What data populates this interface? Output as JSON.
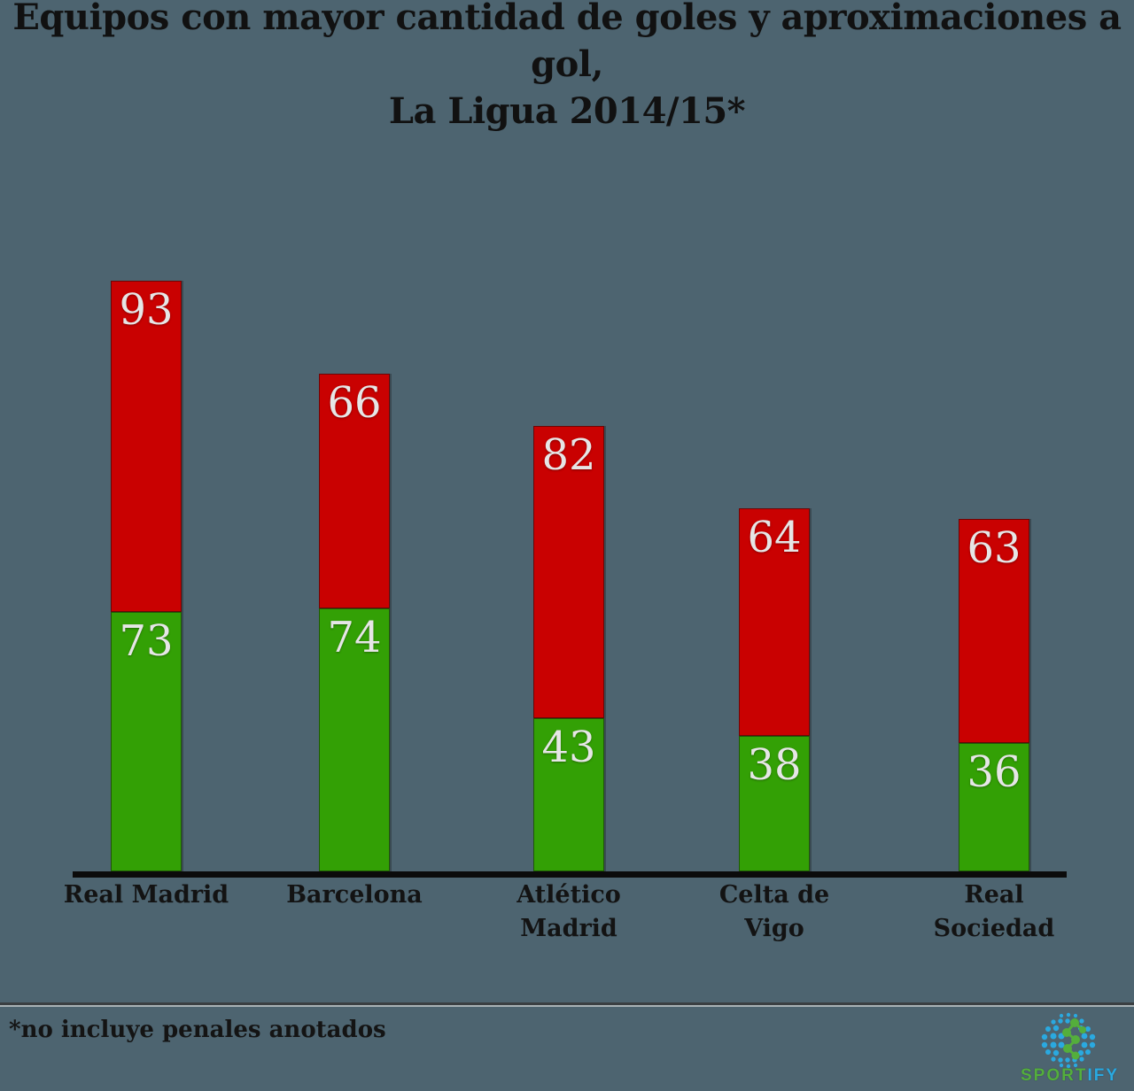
{
  "title": {
    "line1": "Equipos con mayor cantidad de goles y aproximaciones a gol,",
    "line2": "La Ligua 2014/15*"
  },
  "footnote": "*no incluye penales anotados",
  "logo": {
    "brand_primary": "SPORT",
    "brand_secondary": "IFY",
    "green": "#54ae3c",
    "blue": "#2aa9e0"
  },
  "colors": {
    "background": "#4d6470",
    "bar_green": "#33a005",
    "bar_red": "#c90101",
    "value_text": "#e6e6e6",
    "label_text": "#131313",
    "axis": "#0b0b0b"
  },
  "chart_data": {
    "type": "bar",
    "stacked": true,
    "title": "Equipos con mayor cantidad de goles y aproximaciones a gol, La Ligua 2014/15*",
    "categories": [
      "Real Madrid",
      "Barcelona",
      "Atlético Madrid",
      "Celta de Vigo",
      "Real Sociedad"
    ],
    "category_lines": [
      [
        "Real Madrid"
      ],
      [
        "Barcelona"
      ],
      [
        "Atlético",
        "Madrid"
      ],
      [
        "Celta de",
        "Vigo"
      ],
      [
        "Real",
        "Sociedad"
      ]
    ],
    "series": [
      {
        "name": "green-bottom-segment",
        "color": "#33a005",
        "values": [
          73,
          74,
          43,
          38,
          36
        ]
      },
      {
        "name": "red-top-segment",
        "color": "#c90101",
        "values": [
          93,
          66,
          82,
          64,
          63
        ]
      }
    ],
    "value_labels_shown": true,
    "xlabel": "",
    "ylabel": "",
    "ylim": [
      0,
      166
    ],
    "grid": false,
    "legend": "none",
    "footnote": "*no incluye penales anotados"
  }
}
